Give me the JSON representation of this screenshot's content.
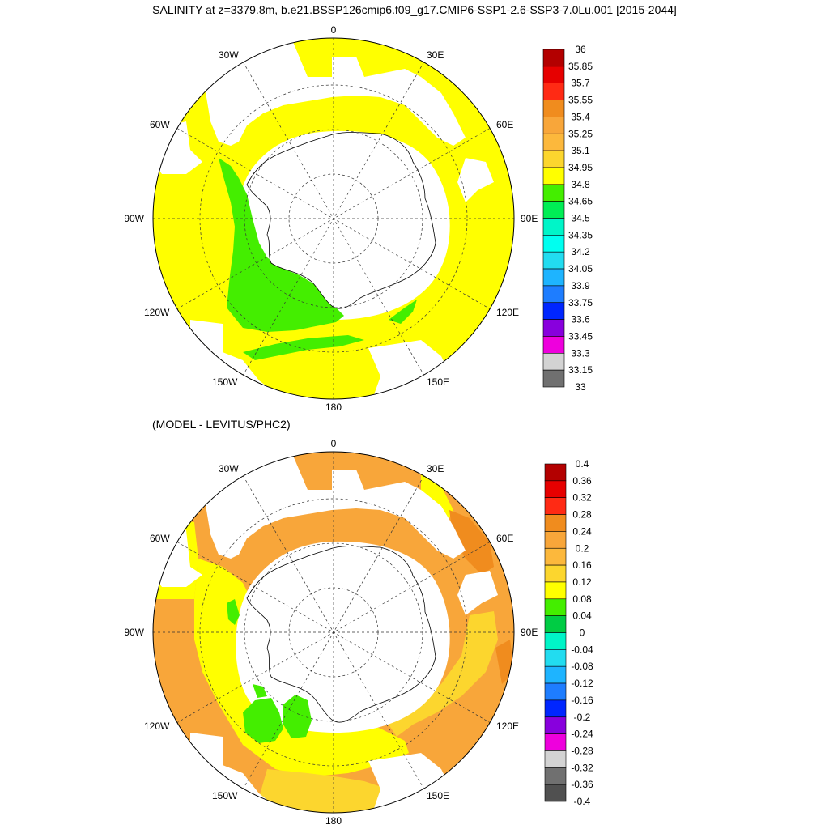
{
  "title": "SALINITY at z=3379.8m, b.e21.BSSP126cmip6.f09_g17.CMIP6-SSP1-2.6-SSP3-7.0Lu.001 [2015-2044]",
  "subtitle": "(MODEL - LEVITUS/PHC2)",
  "longitude_labels": {
    "top": "0",
    "bottom": "180",
    "left": "90W",
    "right": "90E",
    "upper_left_30": "30W",
    "upper_right_30": "30E",
    "upper_left_60": "60W",
    "upper_right_60": "60E",
    "lower_left_120": "120W",
    "lower_right_120": "120E",
    "lower_left_150": "150W",
    "lower_right_150": "150E"
  },
  "colors": {
    "land_missing": "#ffffff",
    "salinity_field_main": "#ffff00",
    "salinity_field_low": "#44ee00",
    "difference_main": "#f8a63a",
    "difference_yellow": "#ffff00",
    "difference_gold": "#fcd62e",
    "difference_dark": "#f08c1e",
    "difference_green": "#44ee00"
  },
  "chart_data": [
    {
      "type": "heatmap",
      "title": "SALINITY at z=3379.8m, b.e21.BSSP126cmip6.f09_g17.CMIP6-SSP1-2.6-SSP3-7.0Lu.001 [2015-2044]",
      "projection": "south polar stereographic",
      "colorbar_labels": [
        "36",
        "35.85",
        "35.7",
        "35.55",
        "35.4",
        "35.25",
        "35.1",
        "34.95",
        "34.8",
        "34.65",
        "34.5",
        "34.35",
        "34.2",
        "34.05",
        "33.9",
        "33.75",
        "33.6",
        "33.45",
        "33.3",
        "33.15",
        "33"
      ],
      "colorbar_colors": [
        "#b30000",
        "#e60000",
        "#ff2a14",
        "#f08c1e",
        "#f8a63a",
        "#fcb83c",
        "#fcd62e",
        "#ffff00",
        "#44ee00",
        "#00ee55",
        "#00f5c8",
        "#00fff0",
        "#22dcf0",
        "#1eb4ff",
        "#1e7dff",
        "#0026ff",
        "#8800dd",
        "#ee00dd",
        "#d3d3d3",
        "#707070"
      ],
      "dominant_ranges": [
        "34.8-34.95",
        "34.65-34.8"
      ]
    },
    {
      "type": "heatmap",
      "title": "(MODEL - LEVITUS/PHC2)",
      "projection": "south polar stereographic",
      "colorbar_labels": [
        "0.4",
        "0.36",
        "0.32",
        "0.28",
        "0.24",
        "0.2",
        "0.16",
        "0.12",
        "0.08",
        "0.04",
        "0",
        "-0.04",
        "-0.08",
        "-0.12",
        "-0.16",
        "-0.2",
        "-0.24",
        "-0.28",
        "-0.32",
        "-0.36",
        "-0.4"
      ],
      "colorbar_colors": [
        "#b30000",
        "#e60000",
        "#ff2a14",
        "#f08c1e",
        "#f8a63a",
        "#fcb83c",
        "#fcd62e",
        "#ffff00",
        "#44ee00",
        "#00cc44",
        "#00f5c8",
        "#22dcf0",
        "#1eb4ff",
        "#1e7dff",
        "#0026ff",
        "#8800dd",
        "#ee00dd",
        "#d3d3d3",
        "#707070",
        "#505050"
      ],
      "dominant_ranges": [
        "0.16-0.2",
        "0.08-0.12",
        "0.12-0.16",
        "0.2-0.24",
        "0-0.04"
      ]
    }
  ]
}
